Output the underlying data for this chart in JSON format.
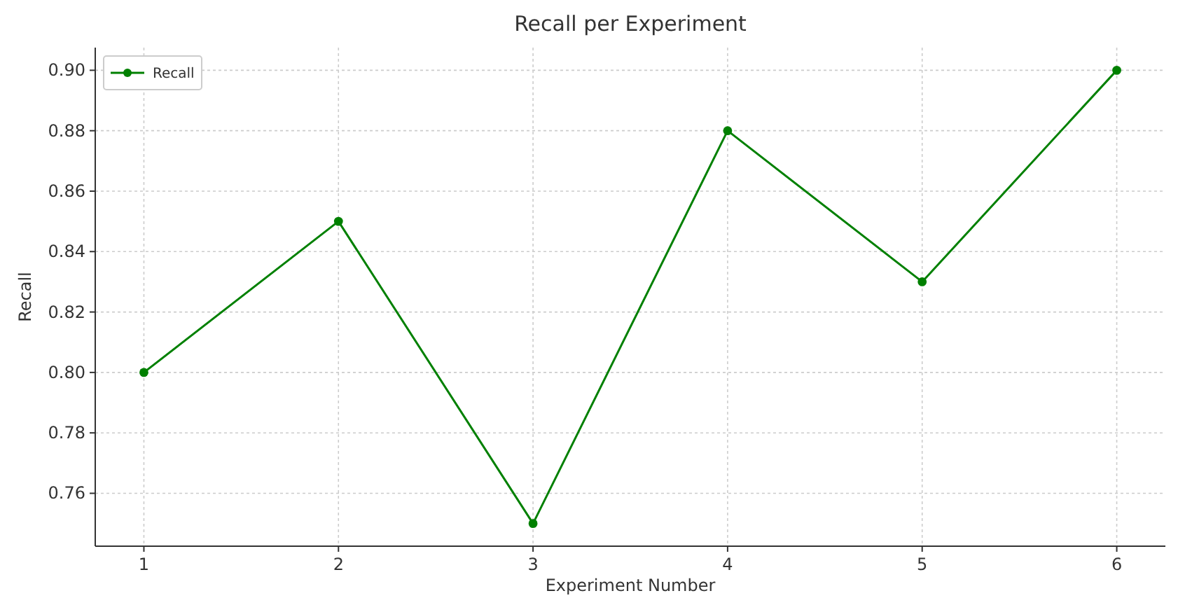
{
  "chart_data": {
    "type": "line",
    "title": "Recall per Experiment",
    "xlabel": "Experiment Number",
    "ylabel": "Recall",
    "x": [
      1,
      2,
      3,
      4,
      5,
      6
    ],
    "series": [
      {
        "name": "Recall",
        "color": "#008000",
        "values": [
          0.8,
          0.85,
          0.75,
          0.88,
          0.83,
          0.9
        ]
      }
    ],
    "xlim": [
      0.75,
      6.25
    ],
    "xticks": [
      1,
      2,
      3,
      4,
      5,
      6
    ],
    "ylim": [
      0.7425,
      0.9075
    ],
    "yticks": [
      {
        "value": 0.76,
        "label": "0.76"
      },
      {
        "value": 0.78,
        "label": "0.78"
      },
      {
        "value": 0.8,
        "label": "0.80"
      },
      {
        "value": 0.82,
        "label": "0.82"
      },
      {
        "value": 0.84,
        "label": "0.84"
      },
      {
        "value": 0.86,
        "label": "0.86"
      },
      {
        "value": 0.88,
        "label": "0.88"
      },
      {
        "value": 0.9,
        "label": "0.90"
      }
    ],
    "grid": true,
    "legend": "top left",
    "marker": "circle",
    "line_style": "solid"
  }
}
